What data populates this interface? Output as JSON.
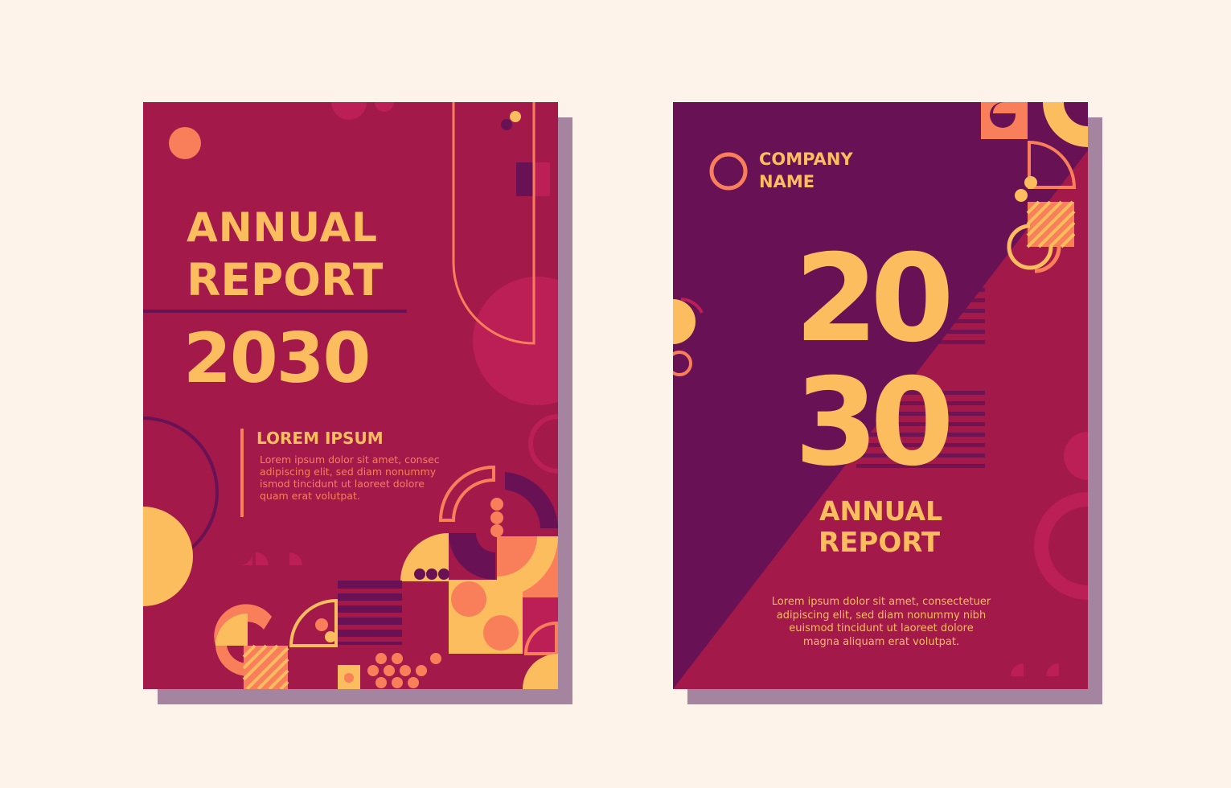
{
  "colors": {
    "background": "#fdf3ea",
    "crimson": "#a3194a",
    "plum": "#681255",
    "pink": "#bb1f55",
    "yellow": "#fcbd5e",
    "coral": "#f97f5a"
  },
  "cover_left": {
    "title_line1": "ANNUAL",
    "title_line2": "REPORT",
    "year": "2030",
    "subheading": "LOREM IPSUM",
    "body_lines": [
      "Lorem ipsum dolor sit amet, consec",
      "adipiscing elit, sed diam nonummy",
      "ismod tincidunt ut laoreet dolore",
      "quam erat volutpat."
    ]
  },
  "cover_right": {
    "company_line1": "COMPANY",
    "company_line2": "NAME",
    "year_top": "20",
    "year_bottom": "30",
    "title_line1": "ANNUAL",
    "title_line2": "REPORT",
    "body_lines": [
      "Lorem ipsum dolor sit amet, consectetuer",
      "adipiscing elit, sed diam nonummy nibh",
      "euismod tincidunt ut laoreet dolore",
      "magna aliquam erat volutpat."
    ]
  }
}
